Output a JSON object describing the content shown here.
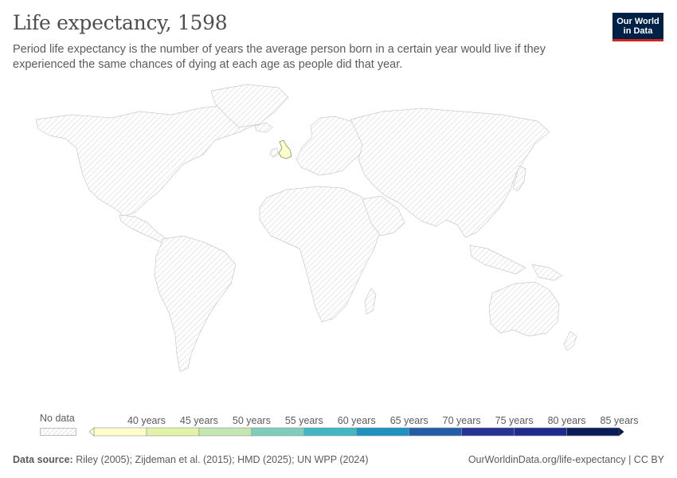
{
  "header": {
    "title": "Life expectancy, 1598",
    "subtitle": "Period life expectancy is the number of years the average person born in a certain year would live if they experienced the same chances of dying at each age as people did that year."
  },
  "logo": {
    "line1": "Our World",
    "line2": "in Data"
  },
  "map": {
    "projection": "robinson-like world map",
    "no_data_pattern": "diagonal-hatch",
    "regions_with_data": [
      {
        "name": "United Kingdom",
        "bin": "below 40 years",
        "color": "#ffffcc"
      }
    ]
  },
  "legend": {
    "no_data_label": "No data",
    "bins": [
      {
        "label": "40 years",
        "color": "#ffffcc"
      },
      {
        "label": "45 years",
        "color": "#e0f3a8"
      },
      {
        "label": "50 years",
        "color": "#c3e6b3"
      },
      {
        "label": "55 years",
        "color": "#7fcdbb"
      },
      {
        "label": "60 years",
        "color": "#41b6c4"
      },
      {
        "label": "65 years",
        "color": "#1d91c0"
      },
      {
        "label": "70 years",
        "color": "#225ea8"
      },
      {
        "label": "75 years",
        "color": "#253494"
      },
      {
        "label": "80 years",
        "color": "#1e2a8c"
      },
      {
        "label": "85 years",
        "color": "#081d58"
      }
    ],
    "last_color": "#061a4a"
  },
  "footer": {
    "source_label": "Data source:",
    "source_text": "Riley (2005); Zijdeman et al. (2015); HMD (2025); UN WPP (2024)",
    "right_text": "OurWorldinData.org/life-expectancy | CC BY"
  }
}
